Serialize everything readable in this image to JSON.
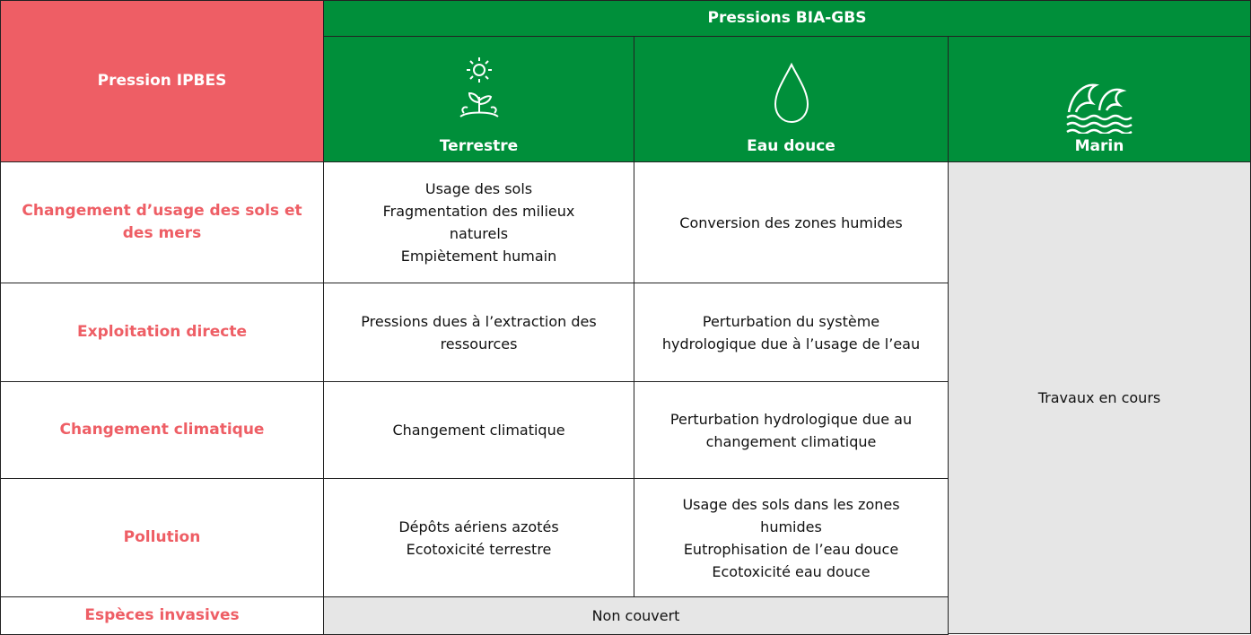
{
  "header": {
    "corner": "Pression IPBES",
    "group": "Pressions BIA-GBS",
    "columns": [
      "Terrestre",
      "Eau douce",
      "Marin"
    ]
  },
  "rows": [
    {
      "label": "Changement d’usage des sols et des mers",
      "terrestre": [
        "Usage des sols",
        "Fragmentation des milieux naturels",
        "Empiètement humain"
      ],
      "eau_douce": [
        "Conversion des zones humides"
      ]
    },
    {
      "label": "Exploitation directe",
      "terrestre": [
        "Pressions dues à l’extraction des ressources"
      ],
      "eau_douce": [
        "Perturbation du système hydrologique due à l’usage de l’eau"
      ]
    },
    {
      "label": "Changement climatique",
      "terrestre": [
        "Changement climatique"
      ],
      "eau_douce": [
        "Perturbation hydrologique due au changement climatique"
      ]
    },
    {
      "label": "Pollution",
      "terrestre": [
        "Dépôts aériens azotés",
        "Ecotoxicité terrestre"
      ],
      "eau_douce": [
        "Usage des sols dans les zones humides",
        "Eutrophisation de l’eau douce",
        "Ecotoxicité eau douce"
      ]
    },
    {
      "label": "Espèces invasives",
      "shared": "Non couvert"
    }
  ],
  "marin": "Travaux en cours"
}
